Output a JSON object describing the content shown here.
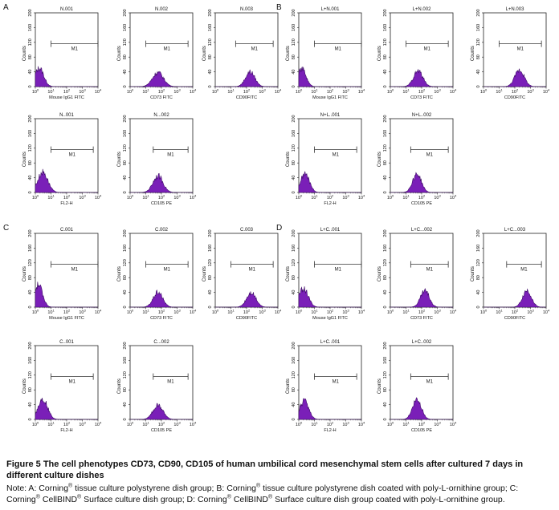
{
  "colors": {
    "fill": "#7a1fb8",
    "fill_edge": "#3d0a66",
    "frame": "#222222",
    "text": "#111111",
    "marker": "#333333"
  },
  "axis": {
    "x_tick_labels": [
      "10^0",
      "10^1",
      "10^2",
      "10^3",
      "10^4"
    ],
    "x_ticks_display": [
      "10",
      "10",
      "10",
      "10",
      "10"
    ],
    "x_ticks_exp": [
      "0",
      "1",
      "2",
      "3",
      "4"
    ],
    "y_tick_labels": [
      "0",
      "40",
      "80",
      "120",
      "160",
      "200"
    ],
    "y_label": "Counts"
  },
  "panel_letters": [
    "A",
    "B",
    "C",
    "D"
  ],
  "chart_data": [
    {
      "panel": "A",
      "title": "N.001",
      "type": "area",
      "xlabel": "Mouse IgG1 FITC",
      "xscale": "log",
      "xlim": [
        1,
        10000
      ],
      "ylim": [
        0,
        200
      ],
      "ylabel": "Counts",
      "gate_label": "M1",
      "gate_range": [
        10,
        10000
      ],
      "peak_x": 1.8,
      "peak_count": 50,
      "peak_width": 0.28
    },
    {
      "panel": "A",
      "title": "N.002",
      "type": "area",
      "xlabel": "CD73 FITC",
      "xscale": "log",
      "xlim": [
        1,
        10000
      ],
      "ylim": [
        0,
        200
      ],
      "ylabel": "Counts",
      "gate_label": "M1",
      "gate_range": [
        10,
        5000
      ],
      "peak_x": 60,
      "peak_count": 38,
      "peak_width": 0.35
    },
    {
      "panel": "A",
      "title": "N.003",
      "type": "area",
      "xlabel": "CD90FITC",
      "xscale": "log",
      "xlim": [
        1,
        10000
      ],
      "ylim": [
        0,
        200
      ],
      "ylabel": "Counts",
      "gate_label": "M1",
      "gate_range": [
        20,
        5000
      ],
      "peak_x": 170,
      "peak_count": 40,
      "peak_width": 0.3
    },
    {
      "panel": "A",
      "title": "N..001",
      "type": "area",
      "xlabel": "FL2-H",
      "xscale": "log",
      "xlim": [
        1,
        10000
      ],
      "ylim": [
        0,
        200
      ],
      "ylabel": "Counts",
      "gate_label": "M1",
      "gate_range": [
        10,
        5000
      ],
      "peak_x": 3,
      "peak_count": 55,
      "peak_width": 0.32
    },
    {
      "panel": "A",
      "title": "N...002",
      "type": "area",
      "xlabel": "CD105 PE",
      "xscale": "log",
      "xlim": [
        1,
        10000
      ],
      "ylim": [
        0,
        200
      ],
      "ylabel": "Counts",
      "gate_label": "M1",
      "gate_range": [
        30,
        5000
      ],
      "peak_x": 60,
      "peak_count": 45,
      "peak_width": 0.32
    },
    {
      "panel": "B",
      "title": "L+N.001",
      "type": "area",
      "xlabel": "Mouse IgG1 FITC",
      "xscale": "log",
      "xlim": [
        1,
        10000
      ],
      "ylim": [
        0,
        200
      ],
      "ylabel": "Counts",
      "gate_label": "M1",
      "gate_range": [
        10,
        10000
      ],
      "peak_x": 1.6,
      "peak_count": 48,
      "peak_width": 0.26
    },
    {
      "panel": "B",
      "title": "L+N.002",
      "type": "area",
      "xlabel": "CD73 FITC",
      "xscale": "log",
      "xlim": [
        1,
        10000
      ],
      "ylim": [
        0,
        200
      ],
      "ylabel": "Counts",
      "gate_label": "M1",
      "gate_range": [
        10,
        5000
      ],
      "peak_x": 60,
      "peak_count": 42,
      "peak_width": 0.3
    },
    {
      "panel": "B",
      "title": "L+N.003",
      "type": "area",
      "xlabel": "CD90FITC",
      "xscale": "log",
      "xlim": [
        1,
        10000
      ],
      "ylim": [
        0,
        200
      ],
      "ylabel": "Counts",
      "gate_label": "M1",
      "gate_range": [
        10,
        5000
      ],
      "peak_x": 200,
      "peak_count": 45,
      "peak_width": 0.3
    },
    {
      "panel": "B",
      "title": "N+L..001",
      "type": "area",
      "xlabel": "FL2-H",
      "xscale": "log",
      "xlim": [
        1,
        10000
      ],
      "ylim": [
        0,
        200
      ],
      "ylabel": "Counts",
      "gate_label": "M1",
      "gate_range": [
        10,
        5000
      ],
      "peak_x": 2.5,
      "peak_count": 50,
      "peak_width": 0.28
    },
    {
      "panel": "B",
      "title": "N+L..002",
      "type": "area",
      "xlabel": "CD105 PE",
      "xscale": "log",
      "xlim": [
        1,
        10000
      ],
      "ylim": [
        0,
        200
      ],
      "ylabel": "Counts",
      "gate_label": "M1",
      "gate_range": [
        20,
        5000
      ],
      "peak_x": 50,
      "peak_count": 50,
      "peak_width": 0.28
    },
    {
      "panel": "C",
      "title": "C.001",
      "type": "area",
      "xlabel": "Mouse IgG1 FITC",
      "xscale": "log",
      "xlim": [
        1,
        10000
      ],
      "ylim": [
        0,
        200
      ],
      "ylabel": "Counts",
      "gate_label": "M1",
      "gate_range": [
        10,
        10000
      ],
      "peak_x": 1.6,
      "peak_count": 60,
      "peak_width": 0.26
    },
    {
      "panel": "C",
      "title": "C.002",
      "type": "area",
      "xlabel": "CD73 FITC",
      "xscale": "log",
      "xlim": [
        1,
        10000
      ],
      "ylim": [
        0,
        200
      ],
      "ylabel": "Counts",
      "gate_label": "M1",
      "gate_range": [
        10,
        5000
      ],
      "peak_x": 60,
      "peak_count": 40,
      "peak_width": 0.3
    },
    {
      "panel": "C",
      "title": "C.003",
      "type": "area",
      "xlabel": "CD90FITC",
      "xscale": "log",
      "xlim": [
        1,
        10000
      ],
      "ylim": [
        0,
        200
      ],
      "ylabel": "Counts",
      "gate_label": "M1",
      "gate_range": [
        10,
        5000
      ],
      "peak_x": 200,
      "peak_count": 40,
      "peak_width": 0.3
    },
    {
      "panel": "C",
      "title": "C..001",
      "type": "area",
      "xlabel": "FL2-H",
      "xscale": "log",
      "xlim": [
        1,
        10000
      ],
      "ylim": [
        0,
        200
      ],
      "ylabel": "Counts",
      "gate_label": "M1",
      "gate_range": [
        10,
        5000
      ],
      "peak_x": 3,
      "peak_count": 55,
      "peak_width": 0.3
    },
    {
      "panel": "C",
      "title": "C...002",
      "type": "area",
      "xlabel": "CD105 PE",
      "xscale": "log",
      "xlim": [
        1,
        10000
      ],
      "ylim": [
        0,
        200
      ],
      "ylabel": "Counts",
      "gate_label": "M1",
      "gate_range": [
        30,
        5000
      ],
      "peak_x": 60,
      "peak_count": 38,
      "peak_width": 0.32
    },
    {
      "panel": "D",
      "title": "L+C..001",
      "type": "area",
      "xlabel": "Mouse IgG1 FITC",
      "xscale": "log",
      "xlim": [
        1,
        10000
      ],
      "ylim": [
        0,
        200
      ],
      "ylabel": "Counts",
      "gate_label": "M1",
      "gate_range": [
        10,
        10000
      ],
      "peak_x": 2,
      "peak_count": 50,
      "peak_width": 0.3
    },
    {
      "panel": "D",
      "title": "L+C...002",
      "type": "area",
      "xlabel": "CD73 FITC",
      "xscale": "log",
      "xlim": [
        1,
        10000
      ],
      "ylim": [
        0,
        200
      ],
      "ylabel": "Counts",
      "gate_label": "M1",
      "gate_range": [
        20,
        5000
      ],
      "peak_x": 160,
      "peak_count": 45,
      "peak_width": 0.28
    },
    {
      "panel": "D",
      "title": "L+C...003",
      "type": "area",
      "xlabel": "CD90FITC",
      "xscale": "log",
      "xlim": [
        1,
        10000
      ],
      "ylim": [
        0,
        200
      ],
      "ylabel": "Counts",
      "gate_label": "M1",
      "gate_range": [
        30,
        5000
      ],
      "peak_x": 600,
      "peak_count": 45,
      "peak_width": 0.28
    },
    {
      "panel": "D",
      "title": "L+C..001",
      "type": "area",
      "xlabel": "FL2-H",
      "xscale": "log",
      "xlim": [
        1,
        10000
      ],
      "ylim": [
        0,
        200
      ],
      "ylabel": "Counts",
      "gate_label": "M1",
      "gate_range": [
        10,
        5000
      ],
      "peak_x": 2.2,
      "peak_count": 50,
      "peak_width": 0.28
    },
    {
      "panel": "D",
      "title": "L+C..002",
      "type": "area",
      "xlabel": "CD105 PE",
      "xscale": "log",
      "xlim": [
        1,
        10000
      ],
      "ylim": [
        0,
        200
      ],
      "ylabel": "Counts",
      "gate_label": "M1",
      "gate_range": [
        20,
        5000
      ],
      "peak_x": 50,
      "peak_count": 55,
      "peak_width": 0.28
    }
  ],
  "caption": {
    "title": "Figure 5 The cell phenotypes CD73, CD90, CD105 of human umbilical cord mesenchymal stem cells after cultured 7 days in different culture dishes",
    "note_intro": "Note: A: Corning",
    "note_a": " tissue culture polystyrene dish group; B: Corning",
    "note_b": " tissue culture polystyrene dish coated with poly-L-ornithine group; C: Corning",
    "note_c": " CellBIND",
    "note_d": " Surface culture dish group; D: Corning",
    "note_e": " CellBIND",
    "note_f": " Surface culture dish group coated with poly-L-ornithine group.",
    "reg_mark": "®"
  }
}
